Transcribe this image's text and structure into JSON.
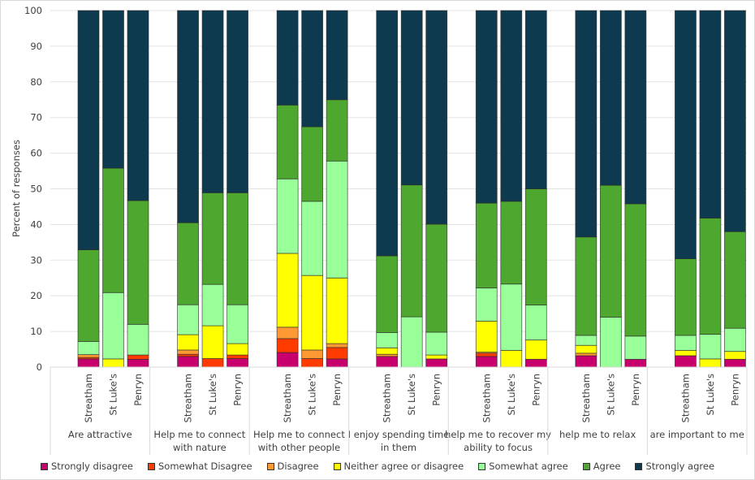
{
  "chart_data": {
    "type": "bar",
    "stacked": true,
    "title": "",
    "xlabel": "",
    "ylabel": "Percent of responses",
    "ylim": [
      0,
      100
    ],
    "yticks": [
      0,
      10,
      20,
      30,
      40,
      50,
      60,
      70,
      80,
      90,
      100
    ],
    "grid": true,
    "legend_position": "bottom",
    "groups": [
      "Are attractive",
      "Help me to connect with nature",
      "Help me to connect with other people",
      "I enjoy spending time in them",
      "help me to recover my ability to focus",
      "help me to relax",
      "are important to me"
    ],
    "group_label_lines": [
      [
        "Are attractive"
      ],
      [
        "Help me to connect",
        "with nature"
      ],
      [
        "Help me to connect",
        "with other people"
      ],
      [
        "I enjoy spending time",
        "in them"
      ],
      [
        "help me to recover my",
        "ability to focus"
      ],
      [
        "help me to relax"
      ],
      [
        "are important to me"
      ]
    ],
    "sites": [
      "Streatham",
      "St Luke's",
      "Penryn"
    ],
    "series": [
      {
        "name": "Strongly disagree",
        "color": "#C8006E",
        "values": [
          [
            2.3,
            0,
            2.2
          ],
          [
            3.0,
            0,
            2.4
          ],
          [
            4.1,
            0,
            2.3
          ],
          [
            3.0,
            0,
            2.3
          ],
          [
            3.0,
            0,
            2.2
          ],
          [
            3.2,
            0,
            2.2
          ],
          [
            3.2,
            0,
            2.2
          ]
        ]
      },
      {
        "name": "Somewhat Disagree",
        "color": "#FF3B00",
        "values": [
          [
            0.4,
            0,
            1.2
          ],
          [
            0.6,
            2.4,
            1.0
          ],
          [
            3.9,
            2.4,
            3.2
          ],
          [
            0,
            0,
            0
          ],
          [
            0.9,
            0,
            0
          ],
          [
            0,
            0,
            0
          ],
          [
            0,
            0,
            0
          ]
        ]
      },
      {
        "name": "Disagree",
        "color": "#FF9933",
        "values": [
          [
            0.8,
            0,
            0
          ],
          [
            1.2,
            0,
            0
          ],
          [
            3.2,
            2.4,
            1.1
          ],
          [
            0.6,
            0,
            0
          ],
          [
            0.3,
            0,
            0
          ],
          [
            0.7,
            0,
            0
          ],
          [
            0,
            0,
            0
          ]
        ]
      },
      {
        "name": "Neither agree or disagree",
        "color": "#FFFF00",
        "values": [
          [
            0,
            2.3,
            0
          ],
          [
            4.3,
            9.2,
            3.2
          ],
          [
            20.7,
            20.9,
            18.4
          ],
          [
            1.8,
            0,
            1.1
          ],
          [
            8.7,
            4.7,
            5.4
          ],
          [
            2.2,
            0,
            0
          ],
          [
            1.5,
            2.3,
            2.2
          ]
        ]
      },
      {
        "name": "Somewhat agree",
        "color": "#99FF99",
        "values": [
          [
            3.7,
            18.6,
            8.6
          ],
          [
            8.4,
            11.6,
            10.9
          ],
          [
            20.9,
            20.8,
            32.8
          ],
          [
            4.3,
            14.1,
            6.4
          ],
          [
            9.3,
            18.6,
            9.8
          ],
          [
            2.8,
            14.0,
            6.5
          ],
          [
            4.2,
            6.9,
            6.5
          ]
        ]
      },
      {
        "name": "Agree",
        "color": "#4EA72E",
        "values": [
          [
            25.7,
            34.9,
            34.7
          ],
          [
            23.0,
            25.7,
            31.4
          ],
          [
            20.7,
            20.9,
            17.2
          ],
          [
            21.5,
            37.0,
            30.3
          ],
          [
            23.8,
            23.2,
            32.6
          ],
          [
            27.6,
            37.0,
            37.1
          ],
          [
            21.5,
            32.6,
            27.1
          ]
        ]
      },
      {
        "name": "Strongly agree",
        "color": "#0E3A4F",
        "values": [
          [
            67.1,
            44.2,
            53.3
          ],
          [
            59.5,
            51.1,
            51.1
          ],
          [
            26.5,
            32.6,
            25.0
          ],
          [
            68.8,
            48.9,
            59.9
          ],
          [
            54.0,
            53.5,
            50.0
          ],
          [
            63.5,
            49.0,
            54.2
          ],
          [
            69.6,
            58.2,
            62.0
          ]
        ]
      }
    ]
  }
}
